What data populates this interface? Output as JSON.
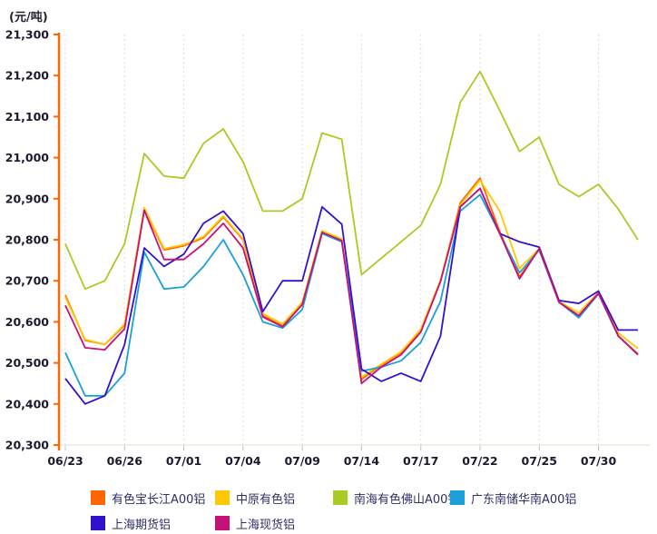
{
  "chart_data": {
    "type": "line",
    "unit_label": "(元/吨)",
    "grid": "vertical-dashed",
    "legend_position": "bottom",
    "y_axis": {
      "min": 20300,
      "max": 21300,
      "step": 100,
      "tick_labels": [
        "21,300",
        "21,200",
        "21,100",
        "21,000",
        "20,900",
        "20,800",
        "20,700",
        "20,600",
        "20,500",
        "20,400",
        "20,300"
      ]
    },
    "x_tick_labels": [
      "06/23",
      "06/26",
      "07/01",
      "07/04",
      "07/09",
      "07/14",
      "07/17",
      "07/22",
      "07/25",
      "07/30"
    ],
    "x_tick_indices": [
      0,
      3,
      6,
      9,
      12,
      15,
      18,
      21,
      24,
      27
    ],
    "num_points": 30,
    "series": [
      {
        "name": "有色宝长江A00铝",
        "color": "#FF6600",
        "values": [
          20665,
          20555,
          20545,
          20592,
          20875,
          20775,
          20785,
          20805,
          20855,
          20800,
          20615,
          20590,
          20645,
          20820,
          20800,
          20460,
          20495,
          20525,
          20580,
          20700,
          20890,
          20950,
          20820,
          20710,
          20778,
          20648,
          20615,
          20670,
          20565,
          20522
        ]
      },
      {
        "name": "中原有色铝",
        "color": "#FFC800",
        "values": [
          20660,
          20557,
          20545,
          20595,
          20878,
          20778,
          20788,
          20808,
          20858,
          20802,
          20620,
          20595,
          20648,
          20822,
          20802,
          20465,
          20497,
          20527,
          20582,
          20702,
          20885,
          20945,
          20870,
          20730,
          20778,
          20650,
          20622,
          20672,
          20573,
          20535
        ]
      },
      {
        "name": "南海有色佛山A00铝",
        "color": "#A8CC22",
        "values": [
          20790,
          20680,
          20700,
          20790,
          21010,
          20955,
          20950,
          21035,
          21070,
          20990,
          20870,
          20870,
          20900,
          21060,
          21045,
          20715,
          20755,
          20795,
          20835,
          20935,
          21135,
          21210,
          21115,
          21015,
          21050,
          20935,
          20905,
          20935,
          20875,
          20800
        ]
      },
      {
        "name": "广东南储华南A00铝",
        "color": "#1C9FD9",
        "values": [
          20525,
          20420,
          20420,
          20475,
          20770,
          20680,
          20685,
          20735,
          20800,
          20715,
          20600,
          20585,
          20630,
          20815,
          20795,
          20480,
          20490,
          20505,
          20550,
          20650,
          20870,
          20910,
          20815,
          20720,
          20775,
          20648,
          20610,
          20668,
          20566,
          20520
        ]
      },
      {
        "name": "上海期货铝",
        "color": "#3311CC",
        "values": [
          20462,
          20400,
          20420,
          20545,
          20780,
          20735,
          20765,
          20840,
          20870,
          20815,
          20625,
          20700,
          20700,
          20880,
          20838,
          20485,
          20455,
          20475,
          20455,
          20565,
          20880,
          20925,
          20815,
          20795,
          20782,
          20652,
          20645,
          20675,
          20580,
          20580
        ]
      },
      {
        "name": "上海现货铝",
        "color": "#C81177",
        "values": [
          20640,
          20537,
          20532,
          20583,
          20872,
          20752,
          20752,
          20790,
          20840,
          20780,
          20612,
          20588,
          20642,
          20818,
          20798,
          20450,
          20490,
          20520,
          20575,
          20698,
          20880,
          20925,
          20815,
          20705,
          20778,
          20648,
          20615,
          20670,
          20566,
          20520
        ]
      }
    ]
  },
  "colors": {
    "axis": "#FF6600",
    "gridline": "#DCDCDC",
    "x_tick": "#C0C0C0",
    "baseline": "#F2E8D6"
  }
}
